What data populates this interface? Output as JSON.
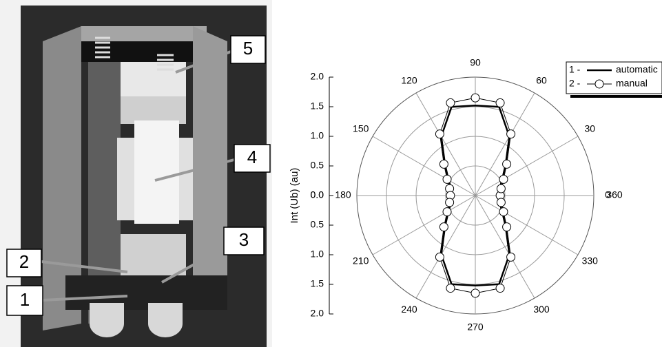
{
  "chart_data": {
    "type": "polar",
    "y_axis_label": "Int (Ub) (au)",
    "rlim": [
      0,
      2
    ],
    "rticks": [
      {
        "value": 0,
        "label": "0.0"
      },
      {
        "value": 0.5,
        "label": "0.5"
      },
      {
        "value": 1,
        "label": "1.0"
      },
      {
        "value": 1.5,
        "label": "1.5"
      },
      {
        "value": 2,
        "label": "2.0"
      }
    ],
    "thetaticks": [
      0,
      30,
      60,
      90,
      120,
      150,
      180,
      210,
      240,
      270,
      300,
      330,
      360
    ],
    "theta": [
      0,
      15,
      30,
      45,
      60,
      75,
      90,
      105,
      120,
      135,
      150,
      165,
      180,
      195,
      210,
      225,
      240,
      255,
      270,
      285,
      300,
      315,
      330,
      345
    ],
    "legend_prefixes": [
      "1 -",
      "2 -"
    ],
    "grid": true,
    "series": [
      {
        "name": "automatic",
        "color": "#000000",
        "values": [
          0.38,
          0.42,
          0.52,
          0.72,
          1.15,
          1.55,
          1.52,
          1.55,
          1.15,
          0.72,
          0.52,
          0.42,
          0.38,
          0.42,
          0.52,
          0.72,
          1.15,
          1.55,
          1.52,
          1.55,
          1.15,
          0.72,
          0.52,
          0.42
        ]
      },
      {
        "name": "manual",
        "color": "#000000",
        "values": [
          0.42,
          0.45,
          0.55,
          0.75,
          1.2,
          1.62,
          1.65,
          1.62,
          1.2,
          0.75,
          0.55,
          0.45,
          0.42,
          0.45,
          0.55,
          0.75,
          1.2,
          1.62,
          1.65,
          1.62,
          1.2,
          0.75,
          0.55,
          0.45
        ]
      }
    ]
  },
  "illustration": {
    "callouts": [
      "1",
      "2",
      "3",
      "4",
      "5"
    ]
  }
}
